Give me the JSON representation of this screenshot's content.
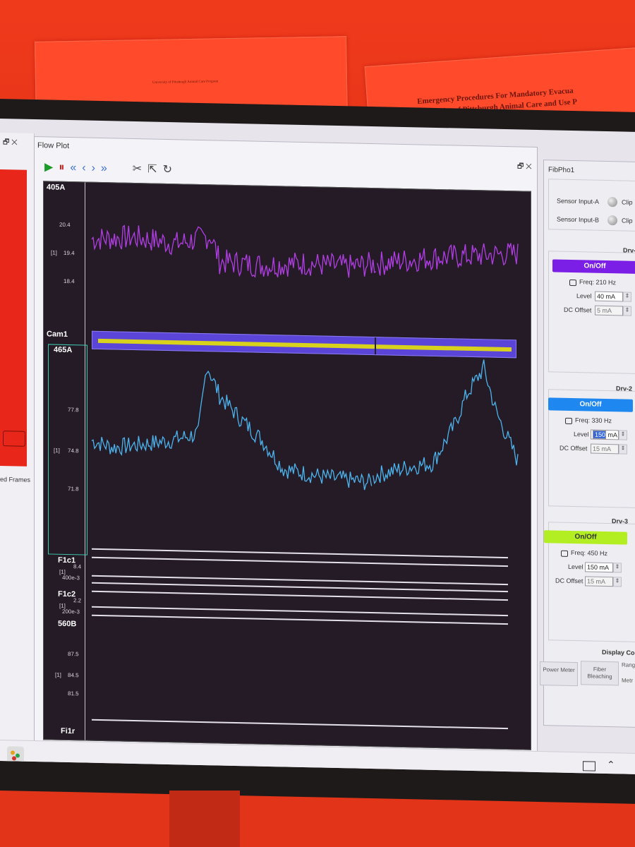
{
  "background": {
    "poster_left_text": "University of Pittsburgh Animal Care Program",
    "poster_right_line1": "Emergency Procedures For Mandatory Evacua",
    "poster_right_line2": "University of Pittsburgh Animal Care and Use P"
  },
  "left_panel": {
    "controls": "🗗 ✕",
    "frames_label": "ed Frames"
  },
  "flow_plot": {
    "title": "Flow Plot",
    "window_controls": "🗗 ✕",
    "toolbar": {
      "play": "▶",
      "pause": "⏸",
      "rewind": "«",
      "prev": "‹",
      "next": "›",
      "forward": "»",
      "cut": "✂",
      "export": "⇱",
      "refresh": "↻"
    },
    "channels": {
      "ch405A": {
        "name": "405A",
        "ticks": [
          "20.4",
          "19.4",
          "18.4"
        ],
        "index": "[1]"
      },
      "cam1": {
        "name": "Cam1"
      },
      "ch465A": {
        "name": "465A",
        "ticks": [
          "77.8",
          "74.8",
          "71.8"
        ],
        "index": "[1]"
      },
      "f1c1": {
        "name": "F1c1",
        "ticks": [
          "8.4",
          "400e-3"
        ],
        "index": "[1]"
      },
      "f1c2": {
        "name": "F1c2",
        "ticks": [
          "2.2",
          "200e-3"
        ],
        "index": "[1]"
      },
      "ch560B": {
        "name": "560B",
        "ticks": [
          "87.5",
          "84.5",
          "81.5"
        ],
        "index": "[1]"
      },
      "fi1r": {
        "name": "Fi1r"
      }
    },
    "colors": {
      "trace405": "#b23ee6",
      "trace465": "#4cb4ee",
      "cam": "#5b45d8",
      "cam_stripe": "#d8d21c"
    }
  },
  "chart_data": {
    "type": "line",
    "series": [
      {
        "name": "405A",
        "x": [
          0,
          10,
          20,
          28,
          30,
          40,
          50,
          60,
          70,
          80,
          90,
          100
        ],
        "values": [
          19.9,
          20.0,
          19.8,
          20.1,
          19.2,
          19.1,
          19.2,
          19.1,
          19.3,
          19.5,
          19.6,
          19.7
        ]
      },
      {
        "name": "465A",
        "x": [
          0,
          5,
          10,
          18,
          25,
          27,
          30,
          35,
          40,
          45,
          55,
          65,
          67,
          75,
          80,
          85,
          88,
          92,
          95,
          100
        ],
        "values": [
          75.1,
          74.6,
          74.8,
          75.2,
          75.8,
          81.2,
          78.8,
          77.0,
          75.4,
          73.2,
          72.6,
          72.3,
          72.9,
          73.6,
          73.9,
          76.8,
          79.3,
          81.4,
          77.9,
          74.2
        ]
      }
    ]
  },
  "right_panel": {
    "title": "FibPho1",
    "sensor_a": "Sensor Input-A",
    "sensor_b": "Sensor Input-B",
    "clip": "Clip",
    "drv1": {
      "title": "Drv-",
      "onoff": "On/Off",
      "freq": "Freq: 210 Hz",
      "level_label": "Level",
      "level": "40 mA",
      "dc_label": "DC Offset",
      "dc": "5 mA",
      "color": "#7b1ee6"
    },
    "drv2": {
      "title": "Drv-2",
      "onoff": "On/Off",
      "freq": "Freq: 330 Hz",
      "level_label": "Level",
      "level": "150",
      "level_unit": "mA",
      "dc_label": "DC Offset",
      "dc": "15 mA",
      "color": "#1f88f0"
    },
    "drv3": {
      "title": "Drv-3",
      "onoff": "On/Off",
      "freq": "Freq: 450 Hz",
      "level_label": "Level",
      "level": "150 mA",
      "dc_label": "DC Offset",
      "dc": "15 mA",
      "color": "#b2ee22"
    },
    "display_title": "Display Cor",
    "btn_power": "Power Meter",
    "btn_fiber": "Fiber Bleaching",
    "btn_range": "Rang",
    "btn_metr": "Metr"
  }
}
